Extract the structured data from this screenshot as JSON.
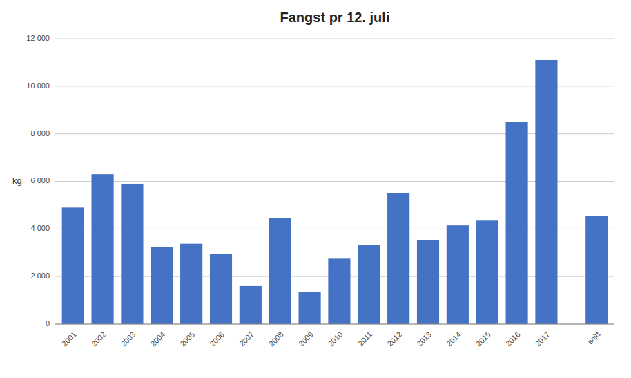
{
  "chart_data": {
    "type": "bar",
    "title": "Fangst pr 12. juli",
    "ylabel": "kg",
    "categories": [
      "2001",
      "2002",
      "2003",
      "2004",
      "2005",
      "2006",
      "2007",
      "2008",
      "2009",
      "2010",
      "2011",
      "2012",
      "2013",
      "2014",
      "2015",
      "2016",
      "2017",
      "snitt"
    ],
    "values": [
      4900,
      6300,
      5900,
      3250,
      3380,
      2950,
      1600,
      4450,
      1350,
      2750,
      3330,
      5500,
      3520,
      4150,
      4350,
      8500,
      11100,
      4550
    ],
    "color": "#4472C4",
    "ylim": [
      0,
      12000
    ],
    "yticks": [
      0,
      {
        "value": 2000,
        "label": "2 000"
      },
      {
        "value": 4000,
        "label": "4 000"
      },
      {
        "value": 6000,
        "label": "6 000"
      },
      {
        "value": 8000,
        "label": "8 000"
      },
      {
        "value": 10000,
        "label": "10 000"
      },
      {
        "value": 12000,
        "label": "12 000"
      }
    ],
    "grid": true
  }
}
